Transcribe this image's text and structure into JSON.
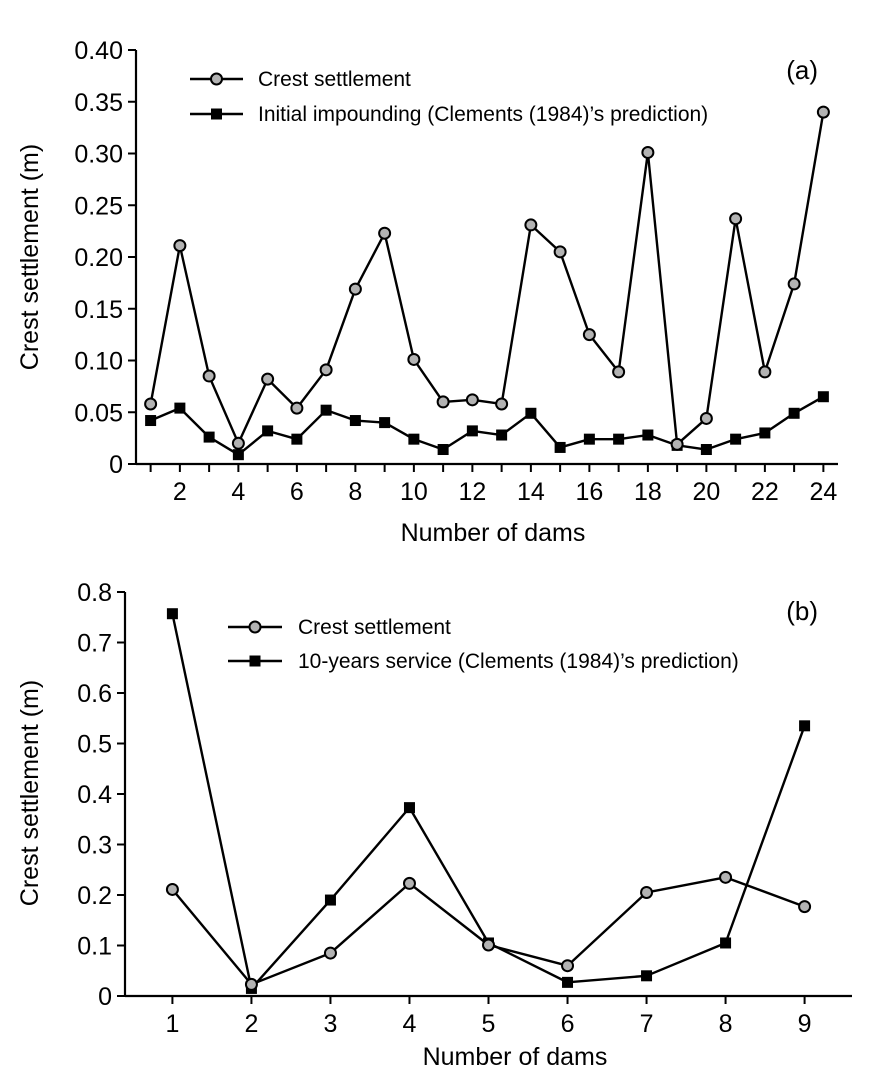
{
  "chart_data": [
    {
      "type": "line",
      "panel_label": "(a)",
      "xlabel": "Number of dams",
      "ylabel": "Crest settlement (m)",
      "xlim": [
        0.5,
        24.5
      ],
      "ylim": [
        0,
        0.4
      ],
      "x_ticks": [
        2,
        4,
        6,
        8,
        10,
        12,
        14,
        16,
        18,
        20,
        22,
        24
      ],
      "x_tick_labels": [
        "2",
        "4",
        "6",
        "8",
        "10",
        "12",
        "14",
        "16",
        "18",
        "20",
        "22",
        "24"
      ],
      "y_ticks": [
        0,
        0.05,
        0.1,
        0.15,
        0.2,
        0.25,
        0.3,
        0.35,
        0.4
      ],
      "y_tick_labels": [
        "0",
        "0.05",
        "0.10",
        "0.15",
        "0.20",
        "0.25",
        "0.30",
        "0.35",
        "0.40"
      ],
      "legend_position": "top-left",
      "x": [
        1,
        2,
        3,
        4,
        5,
        6,
        7,
        8,
        9,
        10,
        11,
        12,
        13,
        14,
        15,
        16,
        17,
        18,
        19,
        20,
        21,
        22,
        23,
        24
      ],
      "series": [
        {
          "name": "Crest settlement",
          "marker": "circle",
          "values": [
            0.058,
            0.211,
            0.085,
            0.02,
            0.082,
            0.054,
            0.091,
            0.169,
            0.223,
            0.101,
            0.06,
            0.062,
            0.058,
            0.231,
            0.205,
            0.125,
            0.089,
            0.301,
            0.019,
            0.044,
            0.237,
            0.089,
            0.174,
            0.34
          ]
        },
        {
          "name": "Initial impounding (Clements (1984)’s prediction)",
          "marker": "square",
          "values": [
            0.042,
            0.054,
            0.026,
            0.009,
            0.032,
            0.024,
            0.052,
            0.042,
            0.04,
            0.024,
            0.014,
            0.032,
            0.028,
            0.049,
            0.016,
            0.024,
            0.024,
            0.028,
            0.018,
            0.014,
            0.024,
            0.03,
            0.049,
            0.065
          ]
        }
      ]
    },
    {
      "type": "line",
      "panel_label": "(b)",
      "xlabel": "Number of dams",
      "ylabel": "Crest settlement (m)",
      "xlim": [
        0.4,
        9.6
      ],
      "ylim": [
        0,
        0.8
      ],
      "x_ticks": [
        1,
        2,
        3,
        4,
        5,
        6,
        7,
        8,
        9
      ],
      "x_tick_labels": [
        "1",
        "2",
        "3",
        "4",
        "5",
        "6",
        "7",
        "8",
        "9"
      ],
      "y_ticks": [
        0,
        0.1,
        0.2,
        0.3,
        0.4,
        0.5,
        0.6,
        0.7,
        0.8
      ],
      "y_tick_labels": [
        "0",
        "0.1",
        "0.2",
        "0.3",
        "0.4",
        "0.5",
        "0.6",
        "0.7",
        "0.8"
      ],
      "legend_position": "top-center",
      "x": [
        1,
        2,
        3,
        4,
        5,
        6,
        7,
        8,
        9
      ],
      "series": [
        {
          "name": "Crest settlement",
          "marker": "circle",
          "values": [
            0.211,
            0.023,
            0.085,
            0.223,
            0.101,
            0.06,
            0.205,
            0.235,
            0.177
          ]
        },
        {
          "name": "10-years service (Clements (1984)’s prediction)",
          "marker": "square",
          "values": [
            0.757,
            0.015,
            0.19,
            0.373,
            0.105,
            0.027,
            0.04,
            0.105,
            0.535
          ]
        }
      ]
    }
  ]
}
